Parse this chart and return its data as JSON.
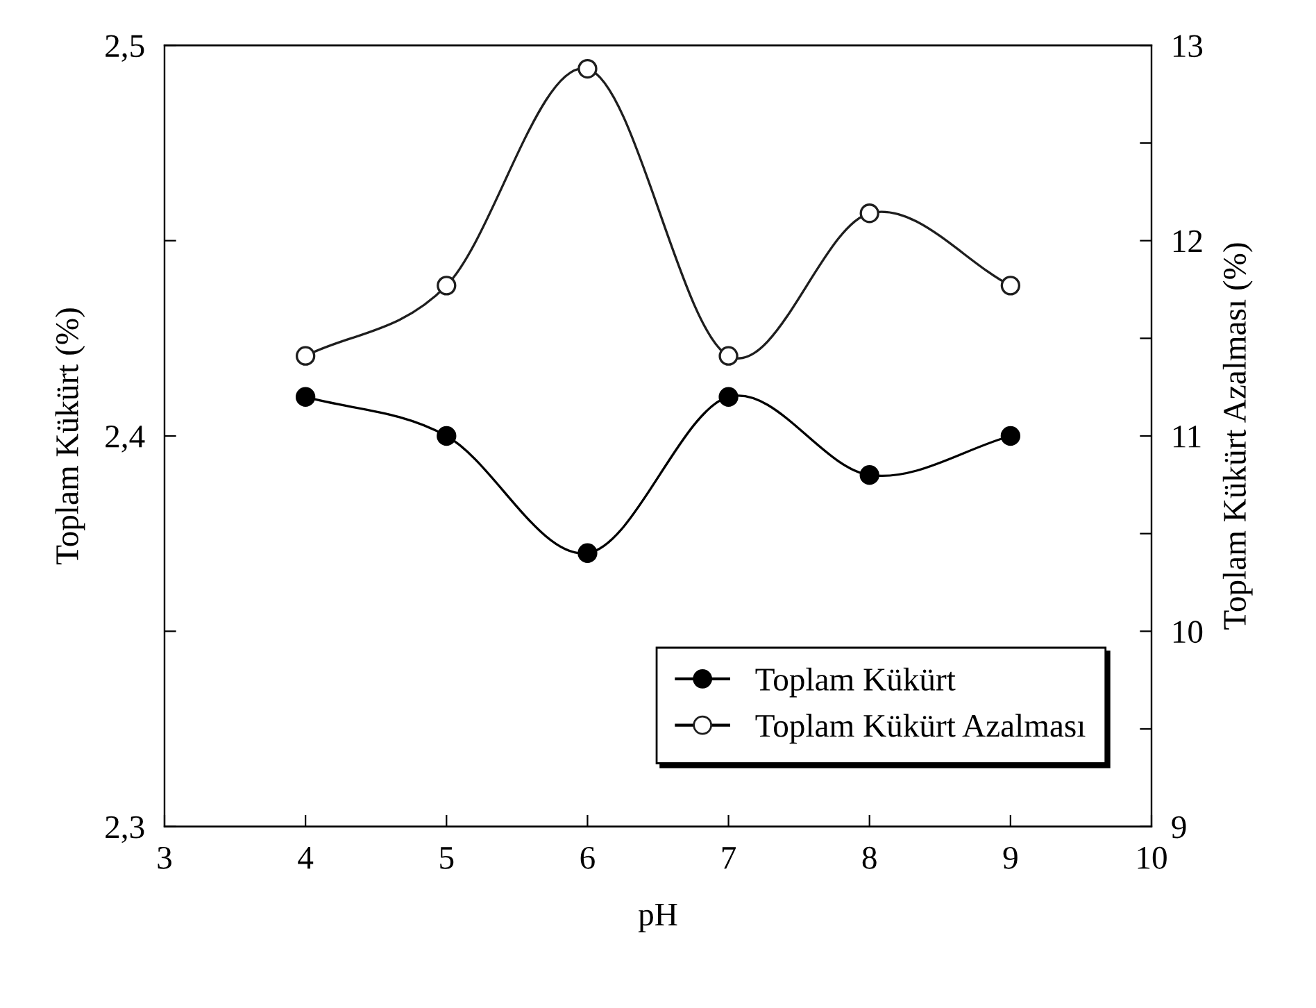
{
  "chart_data": {
    "type": "line",
    "xlabel": "pH",
    "ylabel": "Toplam Kükürt (%)",
    "y2label": "Toplam Kükürt Azalması (%)",
    "x": [
      4,
      5,
      6,
      7,
      8,
      9
    ],
    "series": [
      {
        "name": "Toplam Kükürt",
        "color": "#000000",
        "values": [
          2.41,
          2.4,
          2.37,
          2.41,
          2.39,
          2.4
        ]
      },
      {
        "name": "Toplam Kükürt Azalması",
        "color": "#1e1e1e",
        "colors": [
          "#ffffff",
          "#ffffff",
          "#ffffff",
          "#ffffff",
          "#ffffff",
          "#ffffff"
        ],
        "axis": "y2",
        "values": [
          11.41,
          11.77,
          12.88,
          11.41,
          12.14,
          11.77
        ]
      }
    ],
    "xlim": [
      3,
      10
    ],
    "xticks": [
      3,
      4,
      5,
      6,
      7,
      8,
      9,
      10
    ],
    "ylim": [
      2.3,
      2.5
    ],
    "yticks": [
      {
        "value": 2.3,
        "label": "2,3"
      },
      {
        "value": 2.35,
        "label": null
      },
      {
        "value": 2.4,
        "label": "2,4"
      },
      {
        "value": 2.45,
        "label": null
      },
      {
        "value": 2.5,
        "label": "2,5"
      }
    ],
    "y2lim": [
      9,
      13
    ],
    "y2ticks": [
      9,
      {
        "value": 9.5,
        "label": null
      },
      10,
      {
        "value": 10.5,
        "label": null
      },
      11,
      {
        "value": 11.5,
        "label": null
      },
      12,
      {
        "value": 12.5,
        "label": null
      },
      13
    ],
    "marker": "circle",
    "line_style": "solid",
    "legend": "bottom right",
    "grid": false
  }
}
